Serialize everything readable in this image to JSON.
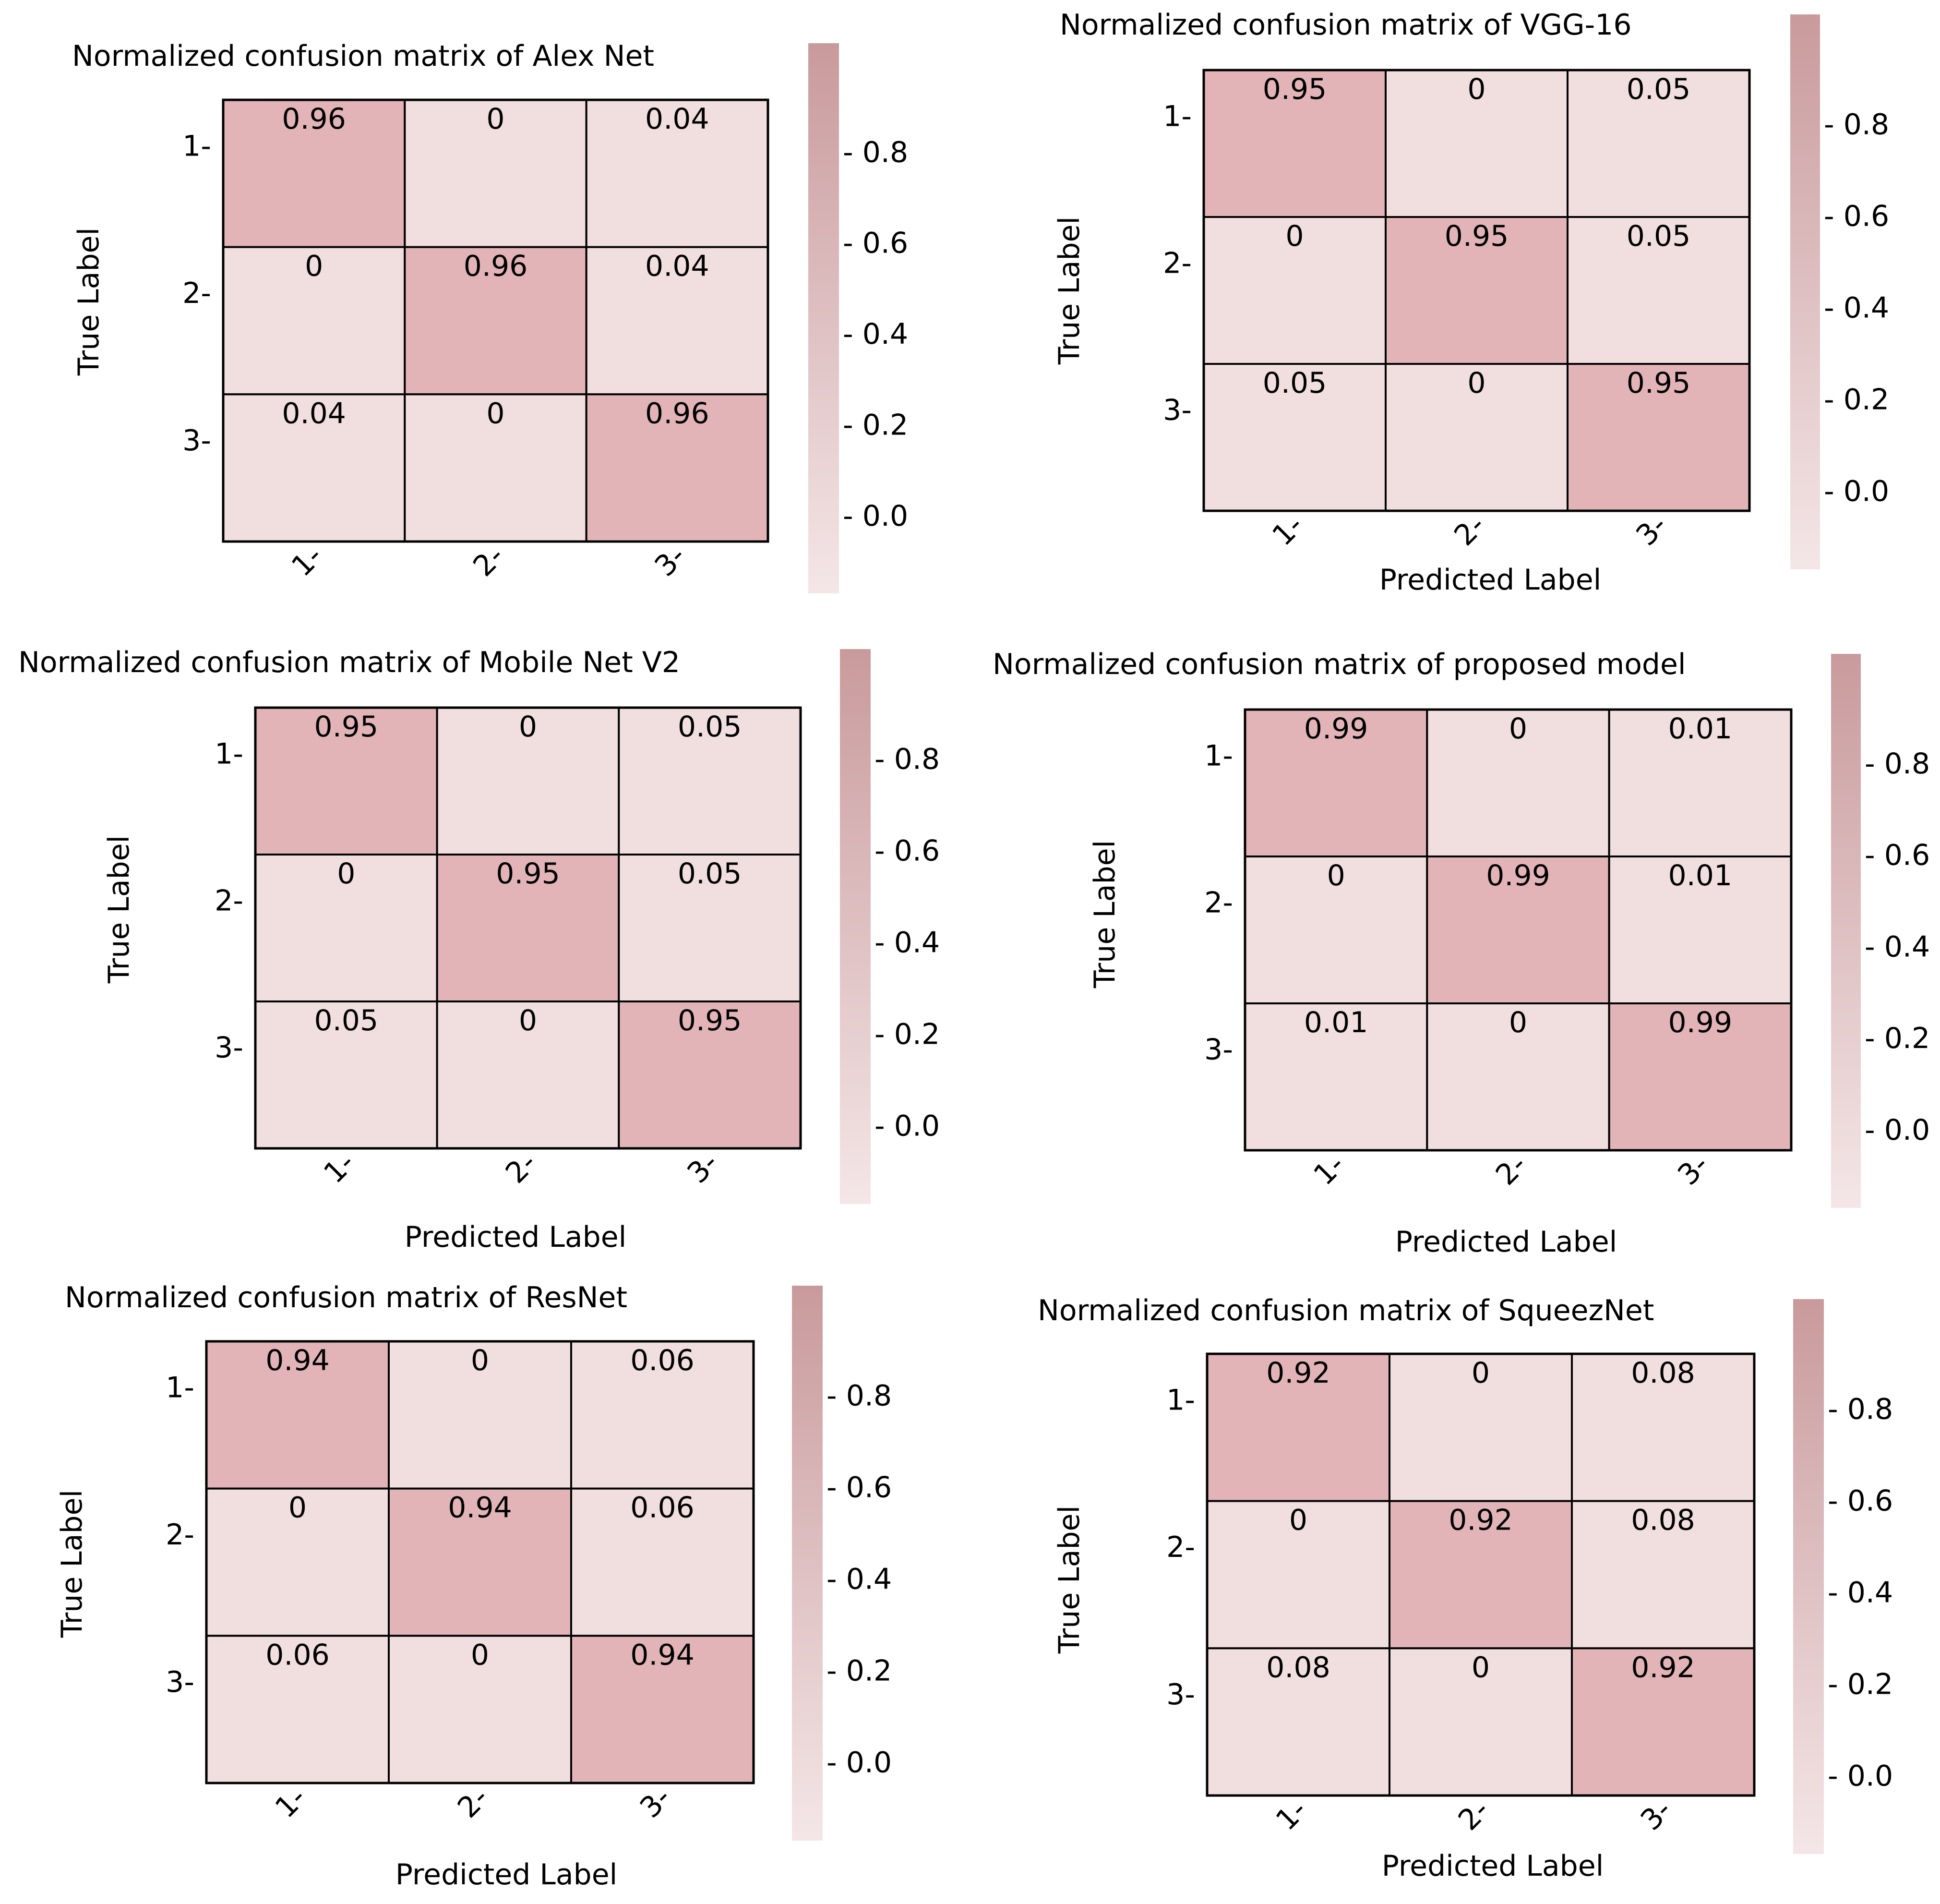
{
  "colors": {
    "background": "#ffffff",
    "cell_high": "#e3b4b7",
    "cell_low": "#f1dfe0",
    "cell_border": "#000000",
    "colorbar_top": "#c99a9c",
    "colorbar_bottom": "#f4e6e7",
    "text": "#000000"
  },
  "chart_data": [
    {
      "type": "heatmap",
      "title": "Normalized confusion matrix of Alex Net",
      "xlabel": "",
      "ylabel": "True Label",
      "x_tick_labels": [
        "1-",
        "2-",
        "3-"
      ],
      "y_tick_labels": [
        "1-",
        "2-",
        "3-"
      ],
      "values": [
        [
          0.96,
          0,
          0.04
        ],
        [
          0,
          0.96,
          0.04
        ],
        [
          0.04,
          0,
          0.96
        ]
      ],
      "value_labels": [
        [
          "0.96",
          "0",
          "0.04"
        ],
        [
          "0",
          "0.96",
          "0.04"
        ],
        [
          "0.04",
          "0",
          "0.96"
        ]
      ],
      "colorbar": {
        "range": [
          -0.17,
          1.04
        ],
        "ticks": [
          0.0,
          0.2,
          0.4,
          0.6,
          0.8
        ],
        "tick_labels": [
          "- 0.0",
          "- 0.2",
          "- 0.4",
          "- 0.6",
          "- 0.8"
        ]
      }
    },
    {
      "type": "heatmap",
      "title": "Normalized confusion matrix of VGG-16",
      "xlabel": "Predicted Label",
      "ylabel": "True Label",
      "x_tick_labels": [
        "1-",
        "2-",
        "3-"
      ],
      "y_tick_labels": [
        "1-",
        "2-",
        "3-"
      ],
      "values": [
        [
          0.95,
          0,
          0.05
        ],
        [
          0,
          0.95,
          0.05
        ],
        [
          0.05,
          0,
          0.95
        ]
      ],
      "value_labels": [
        [
          "0.95",
          "0",
          "0.05"
        ],
        [
          "0",
          "0.95",
          "0.05"
        ],
        [
          "0.05",
          "0",
          "0.95"
        ]
      ],
      "colorbar": {
        "range": [
          -0.17,
          1.04
        ],
        "ticks": [
          0.0,
          0.2,
          0.4,
          0.6,
          0.8
        ],
        "tick_labels": [
          "- 0.0",
          "- 0.2",
          "- 0.4",
          "- 0.6",
          "- 0.8"
        ]
      }
    },
    {
      "type": "heatmap",
      "title": "Normalized confusion matrix of Mobile Net V2",
      "xlabel": "Predicted Label",
      "ylabel": "True Label",
      "x_tick_labels": [
        "1-",
        "2-",
        "3-"
      ],
      "y_tick_labels": [
        "1-",
        "2-",
        "3-"
      ],
      "values": [
        [
          0.95,
          0,
          0.05
        ],
        [
          0,
          0.95,
          0.05
        ],
        [
          0.05,
          0,
          0.95
        ]
      ],
      "value_labels": [
        [
          "0.95",
          "0",
          "0.05"
        ],
        [
          "0",
          "0.95",
          "0.05"
        ],
        [
          "0.05",
          "0",
          "0.95"
        ]
      ],
      "colorbar": {
        "range": [
          -0.17,
          1.04
        ],
        "ticks": [
          0.0,
          0.2,
          0.4,
          0.6,
          0.8
        ],
        "tick_labels": [
          "- 0.0",
          "- 0.2",
          "- 0.4",
          "- 0.6",
          "- 0.8"
        ]
      }
    },
    {
      "type": "heatmap",
      "title": "Normalized confusion matrix of proposed model",
      "xlabel": "Predicted Label",
      "ylabel": "True Label",
      "x_tick_labels": [
        "1-",
        "2-",
        "3-"
      ],
      "y_tick_labels": [
        "1-",
        "2-",
        "3-"
      ],
      "values": [
        [
          0.99,
          0,
          0.01
        ],
        [
          0,
          0.99,
          0.01
        ],
        [
          0.01,
          0,
          0.99
        ]
      ],
      "value_labels": [
        [
          "0.99",
          "0",
          "0.01"
        ],
        [
          "0",
          "0.99",
          "0.01"
        ],
        [
          "0.01",
          "0",
          "0.99"
        ]
      ],
      "colorbar": {
        "range": [
          -0.17,
          1.04
        ],
        "ticks": [
          0.0,
          0.2,
          0.4,
          0.6,
          0.8
        ],
        "tick_labels": [
          "- 0.0",
          "- 0.2",
          "- 0.4",
          "- 0.6",
          "- 0.8"
        ]
      }
    },
    {
      "type": "heatmap",
      "title": "Normalized confusion matrix of ResNet",
      "xlabel": "Predicted Label",
      "ylabel": "True Label",
      "x_tick_labels": [
        "1-",
        "2-",
        "3-"
      ],
      "y_tick_labels": [
        "1-",
        "2-",
        "3-"
      ],
      "values": [
        [
          0.94,
          0,
          0.06
        ],
        [
          0,
          0.94,
          0.06
        ],
        [
          0.06,
          0,
          0.94
        ]
      ],
      "value_labels": [
        [
          "0.94",
          "0",
          "0.06"
        ],
        [
          "0",
          "0.94",
          "0.06"
        ],
        [
          "0.06",
          "0",
          "0.94"
        ]
      ],
      "colorbar": {
        "range": [
          -0.17,
          1.04
        ],
        "ticks": [
          0.0,
          0.2,
          0.4,
          0.6,
          0.8
        ],
        "tick_labels": [
          "- 0.0",
          "- 0.2",
          "- 0.4",
          "- 0.6",
          "- 0.8"
        ]
      }
    },
    {
      "type": "heatmap",
      "title": "Normalized confusion matrix of SqueezNet",
      "xlabel": "Predicted Label",
      "ylabel": "True Label",
      "x_tick_labels": [
        "1-",
        "2-",
        "3-"
      ],
      "y_tick_labels": [
        "1-",
        "2-",
        "3-"
      ],
      "values": [
        [
          0.92,
          0,
          0.08
        ],
        [
          0,
          0.92,
          0.08
        ],
        [
          0.08,
          0,
          0.92
        ]
      ],
      "value_labels": [
        [
          "0.92",
          "0",
          "0.08"
        ],
        [
          "0",
          "0.92",
          "0.08"
        ],
        [
          "0.08",
          "0",
          "0.92"
        ]
      ],
      "colorbar": {
        "range": [
          -0.17,
          1.04
        ],
        "ticks": [
          0.0,
          0.2,
          0.4,
          0.6,
          0.8
        ],
        "tick_labels": [
          "- 0.0",
          "- 0.2",
          "- 0.4",
          "- 0.6",
          "- 0.8"
        ]
      }
    }
  ]
}
